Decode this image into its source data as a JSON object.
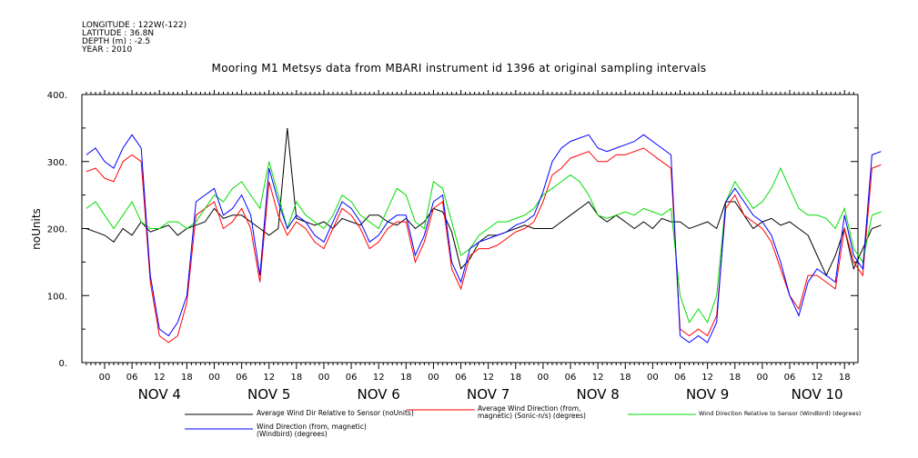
{
  "header": {
    "longitude": "LONGITUDE : 122W(-122)",
    "latitude": "LATITUDE : 36.8N",
    "depth": "DEPTH (m) : -2.5",
    "year": "YEAR : 2010"
  },
  "chart_data": {
    "type": "line",
    "title": "Mooring M1 Metsys data from MBARI instrument id 1396 at original sampling intervals",
    "ylabel": "noUnits",
    "ylim": [
      0,
      400
    ],
    "y_ticks": [
      0,
      100,
      200,
      300,
      400
    ],
    "y_tick_labels": [
      "0.",
      "100.",
      "200.",
      "300.",
      "400."
    ],
    "x_hour_ticks": [
      "00",
      "06",
      "12",
      "18",
      "00",
      "06",
      "12",
      "18",
      "00",
      "06",
      "12",
      "18",
      "00",
      "06",
      "12",
      "18",
      "00",
      "06",
      "12",
      "18",
      "00",
      "06",
      "12",
      "18",
      "00",
      "06",
      "12",
      "18"
    ],
    "x_day_labels": [
      "NOV  4",
      "NOV  5",
      "NOV  6",
      "NOV  7",
      "NOV  8",
      "NOV  9",
      "NOV 10"
    ],
    "series": [
      {
        "name": "Average Wind Dir Relative to Sensor (noUnits)",
        "color": "#000000",
        "x": [
          -4,
          -2,
          0,
          2,
          4,
          6,
          8,
          10,
          12,
          14,
          16,
          18,
          20,
          22,
          24,
          26,
          28,
          30,
          32,
          34,
          36,
          38,
          40,
          42,
          44,
          46,
          48,
          50,
          52,
          54,
          56,
          58,
          60,
          62,
          64,
          66,
          68,
          70,
          72,
          74,
          76,
          78,
          80,
          82,
          84,
          86,
          88,
          90,
          92,
          94,
          96,
          98,
          100,
          102,
          104,
          106,
          108,
          110,
          112,
          114,
          116,
          118,
          120,
          122,
          124,
          126,
          128,
          130,
          132,
          134,
          136,
          138,
          140,
          142,
          144,
          146,
          148,
          150,
          152,
          154,
          156,
          158,
          160,
          162,
          164,
          166,
          168,
          170
        ],
        "values": [
          200,
          195,
          190,
          180,
          200,
          190,
          210,
          195,
          200,
          205,
          190,
          200,
          205,
          210,
          230,
          215,
          220,
          220,
          210,
          200,
          190,
          200,
          350,
          215,
          210,
          205,
          210,
          200,
          215,
          210,
          205,
          220,
          220,
          210,
          205,
          215,
          200,
          210,
          230,
          225,
          195,
          140,
          155,
          180,
          190,
          190,
          195,
          200,
          205,
          200,
          200,
          200,
          210,
          220,
          230,
          240,
          220,
          210,
          220,
          210,
          200,
          210,
          200,
          215,
          210,
          210,
          200,
          205,
          210,
          200,
          240,
          240,
          220,
          200,
          210,
          215,
          205,
          210,
          200,
          190,
          160,
          130,
          160,
          200,
          140,
          170,
          200,
          205
        ]
      },
      {
        "name": "Average Wind Direction (from, magnetic) (Sonic-n/s) (degrees)",
        "color": "#ff0000",
        "x": [
          -4,
          -2,
          0,
          2,
          4,
          6,
          8,
          10,
          12,
          14,
          16,
          18,
          20,
          22,
          24,
          26,
          28,
          30,
          32,
          34,
          36,
          38,
          40,
          42,
          44,
          46,
          48,
          50,
          52,
          54,
          56,
          58,
          60,
          62,
          64,
          66,
          68,
          70,
          72,
          74,
          76,
          78,
          80,
          82,
          84,
          86,
          88,
          90,
          92,
          94,
          96,
          98,
          100,
          102,
          104,
          106,
          108,
          110,
          112,
          114,
          116,
          118,
          120,
          122,
          124,
          126,
          128,
          130,
          132,
          134,
          136,
          138,
          140,
          142,
          144,
          146,
          148,
          150,
          152,
          154,
          156,
          158,
          160,
          162,
          164,
          166,
          168,
          170
        ],
        "values": [
          285,
          290,
          275,
          270,
          300,
          310,
          300,
          120,
          40,
          30,
          40,
          90,
          220,
          230,
          240,
          200,
          210,
          230,
          200,
          120,
          270,
          220,
          190,
          210,
          200,
          180,
          170,
          200,
          230,
          220,
          200,
          170,
          180,
          200,
          210,
          210,
          150,
          180,
          230,
          240,
          140,
          110,
          160,
          170,
          170,
          175,
          185,
          195,
          200,
          210,
          240,
          280,
          290,
          305,
          310,
          315,
          300,
          300,
          310,
          310,
          315,
          320,
          310,
          300,
          290,
          50,
          40,
          50,
          40,
          70,
          230,
          250,
          220,
          210,
          200,
          180,
          140,
          100,
          80,
          130,
          130,
          120,
          110,
          200,
          150,
          130,
          290,
          295
        ]
      },
      {
        "name": "Wind Direction Relative to Sensor (Windbird) (degrees)",
        "color": "#00dd00",
        "x": [
          -4,
          -2,
          0,
          2,
          4,
          6,
          8,
          10,
          12,
          14,
          16,
          18,
          20,
          22,
          24,
          26,
          28,
          30,
          32,
          34,
          36,
          38,
          40,
          42,
          44,
          46,
          48,
          50,
          52,
          54,
          56,
          58,
          60,
          62,
          64,
          66,
          68,
          70,
          72,
          74,
          76,
          78,
          80,
          82,
          84,
          86,
          88,
          90,
          92,
          94,
          96,
          98,
          100,
          102,
          104,
          106,
          108,
          110,
          112,
          114,
          116,
          118,
          120,
          122,
          124,
          126,
          128,
          130,
          132,
          134,
          136,
          138,
          140,
          142,
          144,
          146,
          148,
          150,
          152,
          154,
          156,
          158,
          160,
          162,
          164,
          166,
          168,
          170
        ],
        "values": [
          230,
          240,
          220,
          200,
          220,
          240,
          210,
          200,
          200,
          210,
          210,
          200,
          210,
          230,
          250,
          240,
          260,
          270,
          250,
          230,
          300,
          250,
          200,
          240,
          220,
          210,
          200,
          220,
          250,
          240,
          220,
          210,
          200,
          230,
          260,
          250,
          210,
          200,
          270,
          260,
          210,
          160,
          170,
          190,
          200,
          210,
          210,
          215,
          220,
          230,
          250,
          260,
          270,
          280,
          270,
          250,
          220,
          215,
          220,
          225,
          220,
          230,
          225,
          220,
          230,
          100,
          60,
          80,
          60,
          100,
          240,
          270,
          250,
          230,
          240,
          260,
          290,
          260,
          230,
          220,
          220,
          215,
          200,
          230,
          170,
          150,
          220,
          225
        ]
      },
      {
        "name": "Wind Direction (from, magnetic) (Windbird) (degrees)",
        "color": "#0000ff",
        "x": [
          -4,
          -2,
          0,
          2,
          4,
          6,
          8,
          10,
          12,
          14,
          16,
          18,
          20,
          22,
          24,
          26,
          28,
          30,
          32,
          34,
          36,
          38,
          40,
          42,
          44,
          46,
          48,
          50,
          52,
          54,
          56,
          58,
          60,
          62,
          64,
          66,
          68,
          70,
          72,
          74,
          76,
          78,
          80,
          82,
          84,
          86,
          88,
          90,
          92,
          94,
          96,
          98,
          100,
          102,
          104,
          106,
          108,
          110,
          112,
          114,
          116,
          118,
          120,
          122,
          124,
          126,
          128,
          130,
          132,
          134,
          136,
          138,
          140,
          142,
          144,
          146,
          148,
          150,
          152,
          154,
          156,
          158,
          160,
          162,
          164,
          166,
          168,
          170
        ],
        "values": [
          310,
          320,
          300,
          290,
          320,
          340,
          320,
          130,
          50,
          40,
          60,
          100,
          240,
          250,
          260,
          220,
          230,
          250,
          220,
          130,
          290,
          240,
          200,
          220,
          210,
          190,
          180,
          210,
          240,
          230,
          210,
          180,
          190,
          210,
          220,
          220,
          160,
          190,
          240,
          250,
          150,
          120,
          170,
          180,
          185,
          190,
          195,
          205,
          210,
          220,
          255,
          300,
          320,
          330,
          335,
          340,
          320,
          315,
          320,
          325,
          330,
          340,
          330,
          320,
          310,
          40,
          30,
          40,
          30,
          60,
          240,
          260,
          240,
          220,
          210,
          190,
          150,
          100,
          70,
          120,
          140,
          130,
          120,
          220,
          160,
          140,
          310,
          315
        ]
      }
    ],
    "legend_placement": "bottom",
    "grid": false
  }
}
